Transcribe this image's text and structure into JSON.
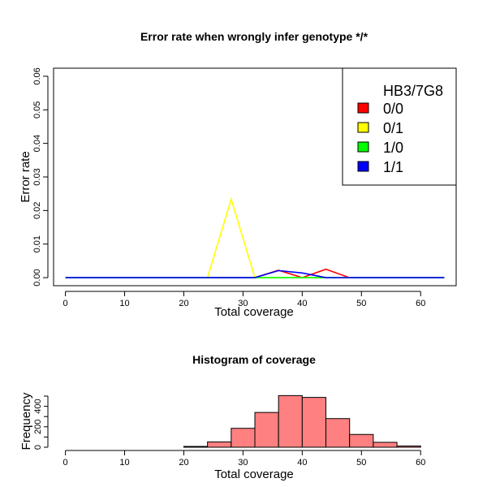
{
  "chart_data": [
    {
      "type": "line",
      "title": "Error rate when wrongly infer genotype */*",
      "xlabel": "Total coverage",
      "ylabel": "Error rate",
      "xlim": [
        -2,
        66
      ],
      "ylim": [
        -0.0024,
        0.0624
      ],
      "xticks": [
        0,
        10,
        20,
        30,
        40,
        50,
        60
      ],
      "yticks": [
        0.0,
        0.01,
        0.02,
        0.03,
        0.04,
        0.05,
        0.06
      ],
      "ytick_labels": [
        "0.00",
        "0.01",
        "0.02",
        "0.03",
        "0.04",
        "0.05",
        "0.06"
      ],
      "legend": {
        "position": "top-right",
        "title": "HB3/7G8",
        "entries": [
          {
            "label": "0/0",
            "color": "#ff0000"
          },
          {
            "label": "0/1",
            "color": "#ffff00"
          },
          {
            "label": "1/0",
            "color": "#00ff00"
          },
          {
            "label": "1/1",
            "color": "#0000ff"
          }
        ]
      },
      "x": [
        0,
        4,
        8,
        12,
        16,
        20,
        24,
        28,
        32,
        36,
        40,
        44,
        48,
        52,
        56,
        60,
        64
      ],
      "series": [
        {
          "name": "0/0",
          "color": "#ff0000",
          "values": [
            0,
            0,
            0,
            0,
            0,
            0,
            0,
            0,
            0,
            0.0022,
            0,
            0.0025,
            0,
            0,
            0,
            0,
            0
          ]
        },
        {
          "name": "0/1",
          "color": "#ffff00",
          "values": [
            0,
            0,
            0,
            0,
            0,
            0,
            0,
            0.0234,
            0,
            0,
            0,
            0,
            0,
            0,
            0,
            0,
            0
          ]
        },
        {
          "name": "1/0",
          "color": "#00ff00",
          "values": [
            0,
            0,
            0,
            0,
            0,
            0,
            0,
            0,
            0,
            0,
            0,
            0,
            0,
            0,
            0,
            0,
            0
          ]
        },
        {
          "name": "1/1",
          "color": "#0000ff",
          "values": [
            0,
            0,
            0,
            0,
            0,
            0,
            0,
            0,
            0,
            0.0021,
            0.0014,
            0,
            0,
            0,
            0,
            0,
            0
          ]
        }
      ]
    },
    {
      "type": "bar",
      "title": "Histogram of coverage",
      "xlabel": "Total coverage",
      "ylabel": "Frequency",
      "xlim": [
        -2,
        66
      ],
      "ylim": [
        0,
        500
      ],
      "xticks": [
        0,
        10,
        20,
        30,
        40,
        50,
        60
      ],
      "yticks": [
        0,
        100,
        200,
        300,
        400,
        500
      ],
      "ytick_labels": [
        "0",
        "",
        "200",
        "",
        "400",
        ""
      ],
      "bar_color": "#ff8080",
      "bin_edges": [
        0,
        4,
        8,
        12,
        16,
        20,
        24,
        28,
        32,
        36,
        40,
        44,
        48,
        52,
        56,
        60,
        64
      ],
      "values": [
        0,
        0,
        0,
        0,
        0,
        8,
        52,
        185,
        340,
        505,
        487,
        280,
        125,
        48,
        12,
        0
      ]
    }
  ]
}
